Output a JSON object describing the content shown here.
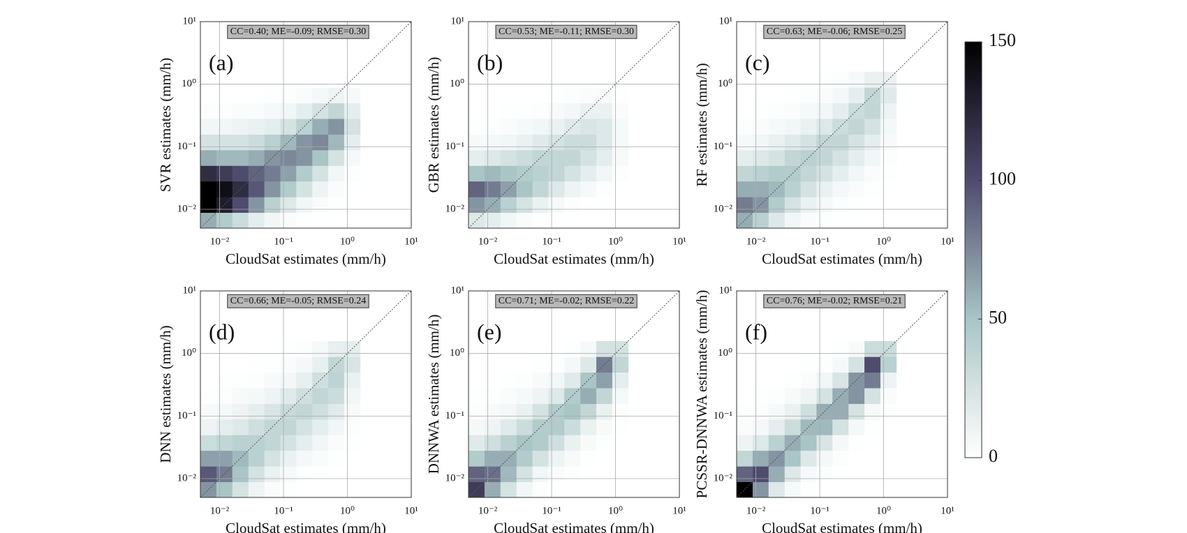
{
  "chart_data": [
    {
      "type": "hist2d",
      "title": "(a)",
      "annotation": "CC=0.40; ME=-0.09; RMSE=0.30",
      "xlabel": "CloudSat estimates (mm/h)",
      "ylabel": "SVR estimates (mm/h)",
      "log": true,
      "grid": true,
      "identity_line": true,
      "xlim": [
        0.005,
        10
      ],
      "ylim": [
        0.005,
        10
      ],
      "xticks": [
        {
          "value": 0.01,
          "label": "10⁻²"
        },
        {
          "value": 0.1,
          "label": "10⁻¹"
        },
        {
          "value": 1,
          "label": "10⁰"
        },
        {
          "value": 10,
          "label": "10¹"
        }
      ],
      "yticks": [
        {
          "value": 0.01,
          "label": "10⁻²"
        },
        {
          "value": 0.1,
          "label": "10⁻¹"
        },
        {
          "value": 1,
          "label": "10⁰"
        },
        {
          "value": 10,
          "label": "10¹"
        }
      ],
      "xbins": [
        0.005,
        0.0089,
        0.0158,
        0.0282,
        0.0501,
        0.0891,
        0.158,
        0.282,
        0.501,
        0.891,
        1.58
      ],
      "ybins": [
        0.005,
        0.0089,
        0.0158,
        0.0282,
        0.0501,
        0.0891,
        0.158,
        0.282,
        0.501,
        0.891,
        1.58
      ],
      "counts": [
        [
          60,
          45,
          30,
          15,
          8,
          3,
          1,
          0,
          0,
          0
        ],
        [
          150,
          130,
          100,
          70,
          40,
          20,
          8,
          3,
          1,
          0
        ],
        [
          150,
          140,
          120,
          95,
          70,
          45,
          25,
          10,
          3,
          0
        ],
        [
          120,
          110,
          100,
          90,
          80,
          65,
          45,
          25,
          8,
          2
        ],
        [
          60,
          55,
          55,
          60,
          70,
          75,
          70,
          50,
          25,
          5
        ],
        [
          25,
          25,
          25,
          30,
          40,
          55,
          70,
          75,
          55,
          15
        ],
        [
          8,
          8,
          10,
          12,
          15,
          25,
          40,
          60,
          70,
          25
        ],
        [
          2,
          2,
          3,
          3,
          5,
          8,
          15,
          25,
          35,
          15
        ],
        [
          0,
          0,
          0,
          0,
          1,
          2,
          3,
          6,
          10,
          5
        ],
        [
          0,
          0,
          0,
          0,
          0,
          0,
          0,
          0,
          0,
          0
        ]
      ]
    },
    {
      "type": "hist2d",
      "title": "(b)",
      "annotation": "CC=0.53; ME=-0.11; RMSE=0.30",
      "xlabel": "CloudSat estimates (mm/h)",
      "ylabel": "GBR estimates (mm/h)",
      "log": true,
      "grid": true,
      "identity_line": true,
      "xlim": [
        0.005,
        10
      ],
      "ylim": [
        0.005,
        10
      ],
      "xticks": [
        {
          "value": 0.01,
          "label": "10⁻²"
        },
        {
          "value": 0.1,
          "label": "10⁻¹"
        },
        {
          "value": 1,
          "label": "10⁰"
        },
        {
          "value": 10,
          "label": "10¹"
        }
      ],
      "yticks": [
        {
          "value": 0.01,
          "label": "10⁻²"
        },
        {
          "value": 0.1,
          "label": "10⁻¹"
        },
        {
          "value": 1,
          "label": "10⁰"
        },
        {
          "value": 10,
          "label": "10¹"
        }
      ],
      "xbins": [
        0.005,
        0.0089,
        0.0158,
        0.0282,
        0.0501,
        0.0891,
        0.158,
        0.282,
        0.501,
        0.891,
        1.58
      ],
      "ybins": [
        0.005,
        0.0089,
        0.0158,
        0.0282,
        0.0501,
        0.0891,
        0.158,
        0.282,
        0.501,
        0.891,
        1.58
      ],
      "counts": [
        [
          20,
          15,
          8,
          3,
          1,
          0,
          0,
          0,
          0,
          0
        ],
        [
          70,
          60,
          40,
          25,
          12,
          5,
          2,
          0,
          0,
          0
        ],
        [
          90,
          80,
          65,
          50,
          35,
          20,
          10,
          5,
          2,
          0
        ],
        [
          50,
          55,
          50,
          45,
          40,
          35,
          25,
          15,
          8,
          2
        ],
        [
          15,
          20,
          25,
          30,
          35,
          35,
          35,
          25,
          15,
          4
        ],
        [
          5,
          6,
          8,
          12,
          18,
          25,
          30,
          30,
          20,
          5
        ],
        [
          1,
          2,
          3,
          5,
          8,
          12,
          18,
          22,
          20,
          5
        ],
        [
          0,
          0,
          1,
          1,
          2,
          4,
          7,
          12,
          12,
          3
        ],
        [
          0,
          0,
          0,
          0,
          0,
          1,
          2,
          3,
          4,
          1
        ],
        [
          0,
          0,
          0,
          0,
          0,
          0,
          0,
          0,
          0,
          0
        ]
      ]
    },
    {
      "type": "hist2d",
      "title": "(c)",
      "annotation": "CC=0.63; ME=-0.06; RMSE=0.25",
      "xlabel": "CloudSat estimates (mm/h)",
      "ylabel": "RF estimates (mm/h)",
      "log": true,
      "grid": true,
      "identity_line": true,
      "xlim": [
        0.005,
        10
      ],
      "ylim": [
        0.005,
        10
      ],
      "xticks": [
        {
          "value": 0.01,
          "label": "10⁻²"
        },
        {
          "value": 0.1,
          "label": "10⁻¹"
        },
        {
          "value": 1,
          "label": "10⁰"
        },
        {
          "value": 10,
          "label": "10¹"
        }
      ],
      "yticks": [
        {
          "value": 0.01,
          "label": "10⁻²"
        },
        {
          "value": 0.1,
          "label": "10⁻¹"
        },
        {
          "value": 1,
          "label": "10⁰"
        },
        {
          "value": 10,
          "label": "10¹"
        }
      ],
      "xbins": [
        0.005,
        0.0089,
        0.0158,
        0.0282,
        0.0501,
        0.0891,
        0.158,
        0.282,
        0.501,
        0.891,
        1.58
      ],
      "ybins": [
        0.005,
        0.0089,
        0.0158,
        0.0282,
        0.0501,
        0.0891,
        0.158,
        0.282,
        0.501,
        0.891,
        1.58
      ],
      "counts": [
        [
          60,
          40,
          20,
          8,
          3,
          1,
          0,
          0,
          0,
          0
        ],
        [
          80,
          70,
          45,
          25,
          12,
          5,
          2,
          1,
          0,
          0
        ],
        [
          60,
          60,
          55,
          40,
          25,
          12,
          6,
          3,
          1,
          0
        ],
        [
          35,
          40,
          45,
          45,
          35,
          25,
          15,
          8,
          3,
          1
        ],
        [
          15,
          20,
          25,
          35,
          40,
          35,
          25,
          15,
          8,
          2
        ],
        [
          5,
          8,
          12,
          18,
          25,
          35,
          35,
          25,
          15,
          4
        ],
        [
          2,
          3,
          5,
          8,
          12,
          20,
          30,
          35,
          25,
          6
        ],
        [
          0,
          1,
          2,
          3,
          5,
          8,
          15,
          30,
          35,
          10
        ],
        [
          0,
          0,
          0,
          1,
          2,
          3,
          6,
          15,
          35,
          18
        ],
        [
          0,
          0,
          0,
          0,
          0,
          1,
          2,
          5,
          12,
          12
        ]
      ]
    },
    {
      "type": "hist2d",
      "title": "(d)",
      "annotation": "CC=0.66; ME=-0.05; RMSE=0.24",
      "xlabel": "CloudSat estimates (mm/h)",
      "ylabel": "DNN estimates (mm/h)",
      "log": true,
      "grid": true,
      "identity_line": true,
      "xlim": [
        0.005,
        10
      ],
      "ylim": [
        0.005,
        10
      ],
      "xticks": [
        {
          "value": 0.01,
          "label": "10⁻²"
        },
        {
          "value": 0.1,
          "label": "10⁻¹"
        },
        {
          "value": 1,
          "label": "10⁰"
        },
        {
          "value": 10,
          "label": "10¹"
        }
      ],
      "yticks": [
        {
          "value": 0.01,
          "label": "10⁻²"
        },
        {
          "value": 0.1,
          "label": "10⁻¹"
        },
        {
          "value": 1,
          "label": "10⁰"
        },
        {
          "value": 10,
          "label": "10¹"
        }
      ],
      "xbins": [
        0.005,
        0.0089,
        0.0158,
        0.0282,
        0.0501,
        0.0891,
        0.158,
        0.282,
        0.501,
        0.891,
        1.58
      ],
      "ybins": [
        0.005,
        0.0089,
        0.0158,
        0.0282,
        0.0501,
        0.0891,
        0.158,
        0.282,
        0.501,
        0.891,
        1.58
      ],
      "counts": [
        [
          70,
          50,
          25,
          10,
          3,
          1,
          0,
          0,
          0,
          0
        ],
        [
          95,
          80,
          50,
          25,
          12,
          5,
          2,
          1,
          0,
          0
        ],
        [
          65,
          65,
          55,
          40,
          25,
          12,
          6,
          3,
          1,
          0
        ],
        [
          30,
          35,
          40,
          40,
          35,
          25,
          15,
          8,
          3,
          1
        ],
        [
          10,
          15,
          20,
          28,
          35,
          35,
          25,
          15,
          8,
          2
        ],
        [
          4,
          6,
          10,
          15,
          22,
          32,
          35,
          28,
          18,
          4
        ],
        [
          1,
          2,
          4,
          6,
          10,
          18,
          28,
          35,
          30,
          8
        ],
        [
          0,
          1,
          1,
          2,
          4,
          7,
          14,
          28,
          38,
          12
        ],
        [
          0,
          0,
          0,
          1,
          1,
          3,
          6,
          14,
          35,
          22
        ],
        [
          0,
          0,
          0,
          0,
          0,
          1,
          2,
          5,
          14,
          15
        ]
      ]
    },
    {
      "type": "hist2d",
      "title": "(e)",
      "annotation": "CC=0.71; ME=-0.02; RMSE=0.22",
      "xlabel": "CloudSat estimates (mm/h)",
      "ylabel": "DNNWA estimates (mm/h)",
      "log": true,
      "grid": true,
      "identity_line": true,
      "xlim": [
        0.005,
        10
      ],
      "ylim": [
        0.005,
        10
      ],
      "xticks": [
        {
          "value": 0.01,
          "label": "10⁻²"
        },
        {
          "value": 0.1,
          "label": "10⁻¹"
        },
        {
          "value": 1,
          "label": "10⁰"
        },
        {
          "value": 10,
          "label": "10¹"
        }
      ],
      "yticks": [
        {
          "value": 0.01,
          "label": "10⁻²"
        },
        {
          "value": 0.1,
          "label": "10⁻¹"
        },
        {
          "value": 1,
          "label": "10⁰"
        },
        {
          "value": 10,
          "label": "10¹"
        }
      ],
      "xbins": [
        0.005,
        0.0089,
        0.0158,
        0.0282,
        0.0501,
        0.0891,
        0.158,
        0.282,
        0.501,
        0.891,
        1.58
      ],
      "ybins": [
        0.005,
        0.0089,
        0.0158,
        0.0282,
        0.0501,
        0.0891,
        0.158,
        0.282,
        0.501,
        0.891,
        1.58
      ],
      "counts": [
        [
          110,
          60,
          25,
          8,
          2,
          0,
          0,
          0,
          0,
          0
        ],
        [
          90,
          85,
          55,
          25,
          8,
          3,
          1,
          0,
          0,
          0
        ],
        [
          45,
          60,
          60,
          45,
          25,
          10,
          4,
          1,
          0,
          0
        ],
        [
          18,
          28,
          40,
          50,
          45,
          28,
          12,
          4,
          1,
          0
        ],
        [
          6,
          10,
          18,
          30,
          45,
          45,
          30,
          12,
          4,
          1
        ],
        [
          2,
          4,
          7,
          12,
          25,
          45,
          50,
          35,
          12,
          2
        ],
        [
          1,
          1,
          3,
          5,
          10,
          20,
          45,
          60,
          35,
          5
        ],
        [
          0,
          0,
          1,
          2,
          4,
          8,
          18,
          50,
          65,
          15
        ],
        [
          0,
          0,
          0,
          0,
          1,
          2,
          6,
          20,
          80,
          35
        ],
        [
          0,
          0,
          0,
          0,
          0,
          0,
          1,
          5,
          25,
          25
        ]
      ]
    },
    {
      "type": "hist2d",
      "title": "(f)",
      "annotation": "CC=0.76; ME=-0.02; RMSE=0.21",
      "xlabel": "CloudSat estimates (mm/h)",
      "ylabel": "PCSSR-DNNWA estimates (mm/h)",
      "log": true,
      "grid": true,
      "identity_line": true,
      "xlim": [
        0.005,
        10
      ],
      "ylim": [
        0.005,
        10
      ],
      "xticks": [
        {
          "value": 0.01,
          "label": "10⁻²"
        },
        {
          "value": 0.1,
          "label": "10⁻¹"
        },
        {
          "value": 1,
          "label": "10⁰"
        },
        {
          "value": 10,
          "label": "10¹"
        }
      ],
      "yticks": [
        {
          "value": 0.01,
          "label": "10⁻²"
        },
        {
          "value": 0.1,
          "label": "10⁻¹"
        },
        {
          "value": 1,
          "label": "10⁰"
        },
        {
          "value": 10,
          "label": "10¹"
        }
      ],
      "xbins": [
        0.005,
        0.0089,
        0.0158,
        0.0282,
        0.0501,
        0.0891,
        0.158,
        0.282,
        0.501,
        0.891,
        1.58
      ],
      "ybins": [
        0.005,
        0.0089,
        0.0158,
        0.0282,
        0.0501,
        0.0891,
        0.158,
        0.282,
        0.501,
        0.891,
        1.58
      ],
      "counts": [
        [
          150,
          70,
          20,
          5,
          1,
          0,
          0,
          0,
          0,
          0
        ],
        [
          90,
          100,
          60,
          20,
          5,
          1,
          0,
          0,
          0,
          0
        ],
        [
          35,
          60,
          70,
          50,
          20,
          6,
          2,
          0,
          0,
          0
        ],
        [
          10,
          20,
          40,
          60,
          50,
          22,
          6,
          1,
          0,
          0
        ],
        [
          3,
          6,
          15,
          30,
          55,
          55,
          25,
          6,
          1,
          0
        ],
        [
          1,
          2,
          5,
          12,
          28,
          60,
          60,
          25,
          5,
          1
        ],
        [
          0,
          1,
          2,
          4,
          10,
          25,
          60,
          70,
          25,
          3
        ],
        [
          0,
          0,
          0,
          1,
          3,
          8,
          22,
          70,
          80,
          10
        ],
        [
          0,
          0,
          0,
          0,
          1,
          2,
          5,
          25,
          100,
          40
        ],
        [
          0,
          0,
          0,
          0,
          0,
          0,
          1,
          4,
          30,
          30
        ]
      ]
    },
    {
      "type": "colorbar",
      "ylim": [
        0,
        150
      ],
      "yticks": [
        0,
        50,
        100,
        150
      ],
      "colors": [
        "#ffffff",
        "#a9c5c5",
        "#4f4b6e",
        "#000000"
      ]
    }
  ]
}
